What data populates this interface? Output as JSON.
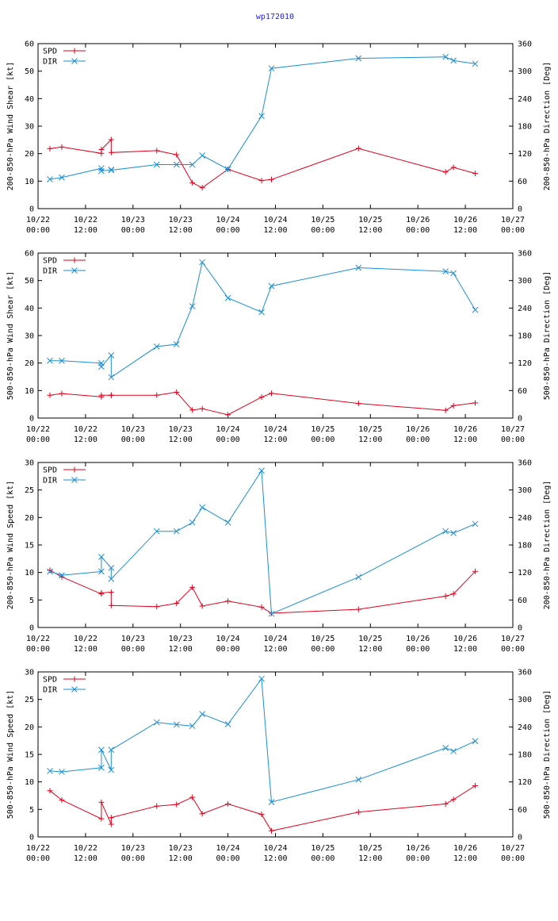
{
  "page_title": "wp172010",
  "colors": {
    "spd": "#e3001b",
    "dir": "#1a8fd6",
    "title": "#1a1aff"
  },
  "chart_data": [
    {
      "type": "line",
      "ylabel_left": "200-850-hPa Wind Shear [kt]",
      "ylabel_right": "200-850-hPa Direction [Deg]",
      "ylim_left": [
        0,
        60
      ],
      "yticks_left": [
        0,
        10,
        20,
        30,
        40,
        50,
        60
      ],
      "ylim_right": [
        0,
        360
      ],
      "yticks_right": [
        0,
        60,
        120,
        180,
        240,
        300,
        360
      ],
      "xlim_hours": [
        0,
        120
      ],
      "x_ticks": [
        {
          "h": 0,
          "l1": "10/22",
          "l2": "00:00"
        },
        {
          "h": 12,
          "l1": "10/22",
          "l2": "12:00"
        },
        {
          "h": 24,
          "l1": "10/23",
          "l2": "00:00"
        },
        {
          "h": 36,
          "l1": "10/23",
          "l2": "12:00"
        },
        {
          "h": 48,
          "l1": "10/24",
          "l2": "00:00"
        },
        {
          "h": 60,
          "l1": "10/24",
          "l2": "12:00"
        },
        {
          "h": 72,
          "l1": "10/25",
          "l2": "00:00"
        },
        {
          "h": 84,
          "l1": "10/25",
          "l2": "12:00"
        },
        {
          "h": 96,
          "l1": "10/26",
          "l2": "00:00"
        },
        {
          "h": 108,
          "l1": "10/26",
          "l2": "12:00"
        },
        {
          "h": 120,
          "l1": "10/27",
          "l2": "00:00"
        }
      ],
      "legend": [
        "SPD",
        "DIR"
      ],
      "series": [
        {
          "name": "SPD",
          "axis": "left",
          "marker": "plus",
          "x": [
            3,
            6,
            16,
            16,
            18.5,
            18.5,
            30,
            35,
            39,
            41.5,
            48,
            56.5,
            59,
            81,
            103,
            105,
            110.5
          ],
          "y": [
            21.8,
            22.4,
            20.1,
            21.5,
            25.1,
            20.4,
            21.1,
            19.6,
            9.4,
            7.6,
            14.3,
            10.2,
            10.6,
            21.9,
            13.3,
            15.0,
            12.8
          ]
        },
        {
          "name": "DIR",
          "axis": "right",
          "marker": "x",
          "x": [
            3,
            6,
            16,
            16,
            18.5,
            18.5,
            30,
            35,
            39,
            41.5,
            48,
            56.5,
            59,
            81,
            103,
            105,
            110.5
          ],
          "y": [
            64,
            68,
            88,
            82,
            85,
            84,
            96,
            96,
            96,
            116,
            86,
            202,
            306,
            328,
            331,
            323,
            316
          ]
        }
      ]
    },
    {
      "type": "line",
      "ylabel_left": "500-850-hPa Wind Shear [kt]",
      "ylabel_right": "500-850-hPa Direction [Deg]",
      "ylim_left": [
        0,
        60
      ],
      "yticks_left": [
        0,
        10,
        20,
        30,
        40,
        50,
        60
      ],
      "ylim_right": [
        0,
        360
      ],
      "yticks_right": [
        0,
        60,
        120,
        180,
        240,
        300,
        360
      ],
      "xlim_hours": [
        0,
        120
      ],
      "x_ticks": [
        {
          "h": 0,
          "l1": "10/22",
          "l2": "00:00"
        },
        {
          "h": 12,
          "l1": "10/22",
          "l2": "12:00"
        },
        {
          "h": 24,
          "l1": "10/23",
          "l2": "00:00"
        },
        {
          "h": 36,
          "l1": "10/23",
          "l2": "12:00"
        },
        {
          "h": 48,
          "l1": "10/24",
          "l2": "00:00"
        },
        {
          "h": 60,
          "l1": "10/24",
          "l2": "12:00"
        },
        {
          "h": 72,
          "l1": "10/25",
          "l2": "00:00"
        },
        {
          "h": 84,
          "l1": "10/25",
          "l2": "12:00"
        },
        {
          "h": 96,
          "l1": "10/26",
          "l2": "00:00"
        },
        {
          "h": 108,
          "l1": "10/26",
          "l2": "12:00"
        },
        {
          "h": 120,
          "l1": "10/27",
          "l2": "00:00"
        }
      ],
      "legend": [
        "SPD",
        "DIR"
      ],
      "series": [
        {
          "name": "SPD",
          "axis": "left",
          "marker": "plus",
          "x": [
            3,
            6,
            16,
            16,
            18.5,
            18.5,
            30,
            35,
            39,
            41.5,
            48,
            56.5,
            59,
            81,
            103,
            105,
            110.5
          ],
          "y": [
            8.3,
            8.9,
            7.7,
            8.3,
            8.3,
            8.3,
            8.3,
            9.4,
            2.9,
            3.4,
            1.2,
            7.6,
            9.0,
            5.3,
            2.8,
            4.5,
            5.5
          ]
        },
        {
          "name": "DIR",
          "axis": "right",
          "marker": "x",
          "x": [
            3,
            6,
            16,
            16,
            18.5,
            18.5,
            30,
            35,
            39,
            41.5,
            48,
            56.5,
            59,
            81,
            103,
            105,
            110.5
          ],
          "y": [
            125,
            125,
            120,
            112,
            137,
            89,
            156,
            161,
            244,
            340,
            262,
            231,
            288,
            328,
            320,
            316,
            236
          ]
        }
      ]
    },
    {
      "type": "line",
      "ylabel_left": "200-850-hPa Wind Speed [kt]",
      "ylabel_right": "200-850-hPa Direction [Deg]",
      "ylim_left": [
        0,
        30
      ],
      "yticks_left": [
        0,
        5,
        10,
        15,
        20,
        25,
        30
      ],
      "ylim_right": [
        0,
        360
      ],
      "yticks_right": [
        0,
        60,
        120,
        180,
        240,
        300,
        360
      ],
      "xlim_hours": [
        0,
        120
      ],
      "x_ticks": [
        {
          "h": 0,
          "l1": "10/22",
          "l2": "00:00"
        },
        {
          "h": 12,
          "l1": "10/22",
          "l2": "12:00"
        },
        {
          "h": 24,
          "l1": "10/23",
          "l2": "00:00"
        },
        {
          "h": 36,
          "l1": "10/23",
          "l2": "12:00"
        },
        {
          "h": 48,
          "l1": "10/24",
          "l2": "00:00"
        },
        {
          "h": 60,
          "l1": "10/24",
          "l2": "12:00"
        },
        {
          "h": 72,
          "l1": "10/25",
          "l2": "00:00"
        },
        {
          "h": 84,
          "l1": "10/25",
          "l2": "12:00"
        },
        {
          "h": 96,
          "l1": "10/26",
          "l2": "00:00"
        },
        {
          "h": 108,
          "l1": "10/26",
          "l2": "12:00"
        },
        {
          "h": 120,
          "l1": "10/27",
          "l2": "00:00"
        }
      ],
      "legend": [
        "SPD",
        "DIR"
      ],
      "series": [
        {
          "name": "SPD",
          "axis": "left",
          "marker": "plus",
          "x": [
            3,
            6,
            16,
            16,
            18.5,
            18.5,
            30,
            35,
            39,
            41.5,
            48,
            56.5,
            59,
            81,
            103,
            105,
            110.5
          ],
          "y": [
            10.4,
            9.2,
            6.1,
            6.3,
            6.4,
            4.0,
            3.8,
            4.4,
            7.3,
            3.9,
            4.8,
            3.7,
            2.6,
            3.3,
            5.7,
            6.1,
            10.2
          ]
        },
        {
          "name": "DIR",
          "axis": "right",
          "marker": "x",
          "x": [
            3,
            6,
            16,
            16,
            18.5,
            18.5,
            30,
            35,
            39,
            41.5,
            48,
            56.5,
            59,
            81,
            103,
            105,
            110.5
          ],
          "y": [
            122,
            114,
            122,
            154,
            130,
            106,
            210,
            210,
            229,
            262,
            229,
            342,
            30,
            110,
            210,
            206,
            226
          ]
        }
      ]
    },
    {
      "type": "line",
      "ylabel_left": "500-850-hPa Wind Speed [kt]",
      "ylabel_right": "500-850-hPa Direction [Deg]",
      "ylim_left": [
        0,
        30
      ],
      "yticks_left": [
        0,
        5,
        10,
        15,
        20,
        25,
        30
      ],
      "ylim_right": [
        0,
        360
      ],
      "yticks_right": [
        0,
        60,
        120,
        180,
        240,
        300,
        360
      ],
      "xlim_hours": [
        0,
        120
      ],
      "x_ticks": [
        {
          "h": 0,
          "l1": "10/22",
          "l2": "00:00"
        },
        {
          "h": 12,
          "l1": "10/22",
          "l2": "12:00"
        },
        {
          "h": 24,
          "l1": "10/23",
          "l2": "00:00"
        },
        {
          "h": 36,
          "l1": "10/23",
          "l2": "12:00"
        },
        {
          "h": 48,
          "l1": "10/24",
          "l2": "00:00"
        },
        {
          "h": 60,
          "l1": "10/24",
          "l2": "12:00"
        },
        {
          "h": 72,
          "l1": "10/25",
          "l2": "00:00"
        },
        {
          "h": 84,
          "l1": "10/25",
          "l2": "12:00"
        },
        {
          "h": 96,
          "l1": "10/26",
          "l2": "00:00"
        },
        {
          "h": 108,
          "l1": "10/26",
          "l2": "12:00"
        },
        {
          "h": 120,
          "l1": "10/27",
          "l2": "00:00"
        }
      ],
      "legend": [
        "SPD",
        "DIR"
      ],
      "series": [
        {
          "name": "SPD",
          "axis": "left",
          "marker": "plus",
          "x": [
            3,
            6,
            16,
            16,
            18.5,
            18.5,
            30,
            35,
            39,
            41.5,
            48,
            56.5,
            59,
            81,
            103,
            105,
            110.5
          ],
          "y": [
            8.4,
            6.7,
            3.3,
            6.3,
            2.3,
            3.5,
            5.6,
            5.9,
            7.2,
            4.2,
            6.0,
            4.1,
            1.1,
            4.5,
            6.0,
            6.8,
            9.3
          ]
        },
        {
          "name": "DIR",
          "axis": "right",
          "marker": "x",
          "x": [
            3,
            6,
            16,
            16,
            18.5,
            18.5,
            30,
            35,
            39,
            41.5,
            48,
            56.5,
            59,
            81,
            103,
            105,
            110.5
          ],
          "y": [
            144,
            142,
            151,
            190,
            146,
            190,
            250,
            245,
            242,
            268,
            246,
            345,
            76,
            125,
            194,
            187,
            209
          ]
        }
      ]
    }
  ]
}
